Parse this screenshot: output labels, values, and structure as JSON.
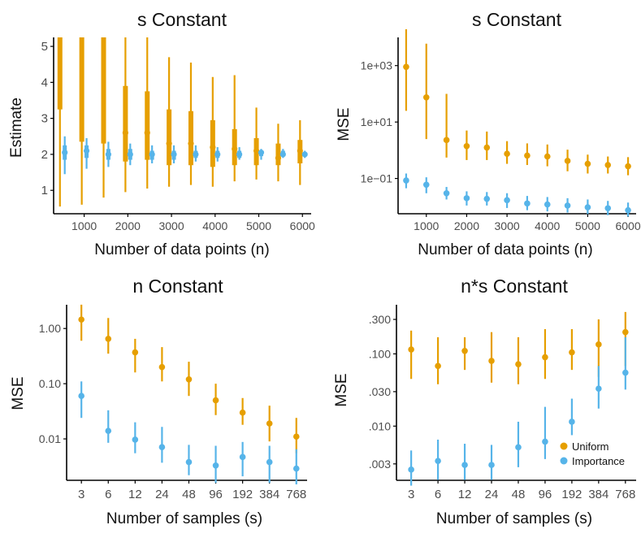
{
  "colors": {
    "uniform": "#E69F00",
    "importance": "#56B4E9",
    "axis": "#000000",
    "text": "#4d4d4d"
  },
  "legend": {
    "uniform": "Uniform",
    "importance": "Importance"
  },
  "chart_data": [
    {
      "id": "p1",
      "type": "interval",
      "title": "s Constant",
      "xlabel": "Number of data points (n)",
      "ylabel": "Estimate",
      "scale": "linear",
      "xlim": [
        300,
        6200
      ],
      "ylim": [
        0.35,
        5.25
      ],
      "xticks": [
        1000,
        2000,
        3000,
        4000,
        5000,
        6000
      ],
      "xtick_labels": [
        "1000",
        "2000",
        "3000",
        "4000",
        "5000",
        "6000"
      ],
      "yticks": [
        1,
        2,
        3,
        4,
        5
      ],
      "ytick_labels": [
        "1",
        "2",
        "3",
        "4",
        "5"
      ],
      "series": [
        {
          "name": "Uniform",
          "dx": -55,
          "x": [
            500,
            1000,
            1500,
            2000,
            2500,
            3000,
            3500,
            4000,
            4500,
            5000,
            5500,
            6000
          ],
          "y": [
            null,
            null,
            null,
            2.6,
            2.6,
            2.3,
            2.3,
            2.2,
            2.15,
            2.1,
            1.9,
            2.1
          ],
          "inner": [
            [
              3.25,
              5.3
            ],
            [
              2.35,
              5.3
            ],
            [
              2.3,
              5.3
            ],
            [
              1.8,
              3.9
            ],
            [
              1.85,
              3.75
            ],
            [
              1.7,
              3.25
            ],
            [
              1.7,
              3.2
            ],
            [
              1.65,
              2.95
            ],
            [
              1.7,
              2.7
            ],
            [
              1.7,
              2.45
            ],
            [
              1.7,
              2.3
            ],
            [
              1.75,
              2.4
            ]
          ],
          "outer": [
            [
              0.55,
              5.3
            ],
            [
              0.6,
              5.3
            ],
            [
              0.8,
              5.3
            ],
            [
              0.95,
              5.3
            ],
            [
              1.05,
              5.3
            ],
            [
              1.1,
              4.7
            ],
            [
              1.15,
              4.55
            ],
            [
              1.1,
              4.15
            ],
            [
              1.25,
              4.2
            ],
            [
              1.3,
              3.3
            ],
            [
              1.25,
              2.85
            ],
            [
              1.15,
              2.95
            ]
          ]
        },
        {
          "name": "Importance",
          "dx": 55,
          "x": [
            500,
            1000,
            1500,
            2000,
            2500,
            3000,
            3500,
            4000,
            4500,
            5000,
            5500,
            6000
          ],
          "y": [
            2.05,
            2.1,
            2.0,
            2.0,
            2.0,
            2.0,
            2.0,
            2.0,
            2.0,
            2.05,
            2.0,
            2.0
          ],
          "inner": [
            [
              1.85,
              2.25
            ],
            [
              1.9,
              2.25
            ],
            [
              1.85,
              2.15
            ],
            [
              1.85,
              2.15
            ],
            [
              1.85,
              2.1
            ],
            [
              1.85,
              2.1
            ],
            [
              1.9,
              2.1
            ],
            [
              1.9,
              2.1
            ],
            [
              1.9,
              2.1
            ],
            [
              1.95,
              2.1
            ],
            [
              1.95,
              2.1
            ],
            [
              1.95,
              2.05
            ]
          ],
          "outer": [
            [
              1.45,
              2.5
            ],
            [
              1.6,
              2.45
            ],
            [
              1.65,
              2.35
            ],
            [
              1.7,
              2.3
            ],
            [
              1.75,
              2.25
            ],
            [
              1.75,
              2.25
            ],
            [
              1.8,
              2.25
            ],
            [
              1.8,
              2.2
            ],
            [
              1.85,
              2.2
            ],
            [
              1.85,
              2.15
            ],
            [
              1.9,
              2.15
            ],
            [
              1.9,
              2.1
            ]
          ]
        }
      ]
    },
    {
      "id": "p2",
      "type": "scatter_errorbar",
      "title": "s Constant",
      "xlabel": "Number of data points (n)",
      "ylabel": "MSE",
      "scale": "log",
      "xlim": [
        300,
        6200
      ],
      "ylim_log10": [
        -2.25,
        4.0
      ],
      "xticks": [
        1000,
        2000,
        3000,
        4000,
        5000,
        6000
      ],
      "xtick_labels": [
        "1000",
        "2000",
        "3000",
        "4000",
        "5000",
        "6000"
      ],
      "yticks": [
        1000,
        10,
        0.1
      ],
      "ytick_labels": [
        "1e+03",
        "1e+01",
        "1e−01"
      ],
      "series": [
        {
          "name": "Uniform",
          "x": [
            500,
            1000,
            1500,
            2000,
            2500,
            3000,
            3500,
            4000,
            4500,
            5000,
            5500,
            6000
          ],
          "y": [
            900,
            75,
            2.3,
            1.4,
            1.25,
            0.75,
            0.65,
            0.6,
            0.42,
            0.33,
            0.3,
            0.27
          ],
          "err": [
            [
              25,
              30000
            ],
            [
              2.5,
              6000
            ],
            [
              0.55,
              100
            ],
            [
              0.45,
              5
            ],
            [
              0.45,
              4.6
            ],
            [
              0.33,
              2.1
            ],
            [
              0.3,
              1.75
            ],
            [
              0.27,
              1.6
            ],
            [
              0.18,
              1.05
            ],
            [
              0.15,
              0.7
            ],
            [
              0.15,
              0.6
            ],
            [
              0.13,
              0.57
            ]
          ]
        },
        {
          "name": "Importance",
          "x": [
            500,
            1000,
            1500,
            2000,
            2500,
            3000,
            3500,
            4000,
            4500,
            5000,
            5500,
            6000
          ],
          "y": [
            0.085,
            0.06,
            0.03,
            0.02,
            0.019,
            0.017,
            0.013,
            0.012,
            0.011,
            0.0095,
            0.0088,
            0.0075
          ],
          "err": [
            [
              0.045,
              0.15
            ],
            [
              0.03,
              0.11
            ],
            [
              0.018,
              0.05
            ],
            [
              0.011,
              0.035
            ],
            [
              0.011,
              0.033
            ],
            [
              0.009,
              0.03
            ],
            [
              0.0075,
              0.024
            ],
            [
              0.0068,
              0.022
            ],
            [
              0.0062,
              0.02
            ],
            [
              0.0055,
              0.018
            ],
            [
              0.005,
              0.016
            ],
            [
              0.0045,
              0.014
            ]
          ]
        }
      ]
    },
    {
      "id": "p3",
      "type": "scatter_errorbar",
      "title": "n Constant",
      "xlabel": "Number of samples (s)",
      "ylabel": "MSE",
      "scale": "log",
      "xlim_index": [
        -0.55,
        8.4
      ],
      "ylim_log10": [
        -2.75,
        0.43
      ],
      "categories": [
        "3",
        "6",
        "12",
        "24",
        "48",
        "96",
        "192",
        "384",
        "768"
      ],
      "yticks": [
        1.0,
        0.1,
        0.01
      ],
      "ytick_labels": [
        "1.00",
        "0.10",
        "0.01"
      ],
      "series": [
        {
          "name": "Uniform",
          "y": [
            1.45,
            0.65,
            0.37,
            0.2,
            0.12,
            0.05,
            0.03,
            0.019,
            0.011
          ],
          "err": [
            [
              0.6,
              2.7
            ],
            [
              0.35,
              1.55
            ],
            [
              0.16,
              0.65
            ],
            [
              0.11,
              0.46
            ],
            [
              0.06,
              0.25
            ],
            [
              0.027,
              0.1
            ],
            [
              0.018,
              0.055
            ],
            [
              0.009,
              0.04
            ],
            [
              0.0055,
              0.024
            ]
          ]
        },
        {
          "name": "Importance",
          "y": [
            0.06,
            0.014,
            0.0097,
            0.0071,
            0.0038,
            0.0033,
            0.0047,
            0.0038,
            0.0029
          ],
          "err": [
            [
              0.024,
              0.11
            ],
            [
              0.0085,
              0.033
            ],
            [
              0.0055,
              0.02
            ],
            [
              0.0037,
              0.0165
            ],
            [
              0.0022,
              0.0078
            ],
            [
              0.0016,
              0.0075
            ],
            [
              0.0021,
              0.0088
            ],
            [
              0.0016,
              0.0075
            ],
            [
              0.0015,
              0.0065
            ]
          ]
        }
      ]
    },
    {
      "id": "p4",
      "type": "scatter_errorbar",
      "title": "n*s Constant",
      "xlabel": "Number of samples (s)",
      "ylabel": "MSE",
      "scale": "log",
      "xlim_index": [
        -0.55,
        8.4
      ],
      "ylim_log10": [
        -2.75,
        -0.32
      ],
      "categories": [
        "3",
        "6",
        "12",
        "24",
        "48",
        "96",
        "192",
        "384",
        "768"
      ],
      "yticks": [
        0.3,
        0.1,
        0.03,
        0.01,
        0.003
      ],
      "ytick_labels": [
        ".300",
        ".100",
        ".030",
        ".010",
        ".003"
      ],
      "series": [
        {
          "name": "Uniform",
          "y": [
            0.115,
            0.068,
            0.11,
            0.08,
            0.072,
            0.09,
            0.105,
            0.135,
            0.2
          ],
          "err": [
            [
              0.045,
              0.21
            ],
            [
              0.038,
              0.17
            ],
            [
              0.06,
              0.17
            ],
            [
              0.04,
              0.2
            ],
            [
              0.038,
              0.17
            ],
            [
              0.045,
              0.22
            ],
            [
              0.06,
              0.22
            ],
            [
              0.048,
              0.3
            ],
            [
              0.068,
              0.38
            ]
          ]
        },
        {
          "name": "Importance",
          "y": [
            0.0025,
            0.0033,
            0.0029,
            0.0029,
            0.0051,
            0.0061,
            0.0115,
            0.033,
            0.055
          ],
          "err": [
            [
              0.0015,
              0.0046
            ],
            [
              0.0018,
              0.0065
            ],
            [
              0.0018,
              0.0057
            ],
            [
              0.0018,
              0.0055
            ],
            [
              0.0027,
              0.0115
            ],
            [
              0.0035,
              0.0185
            ],
            [
              0.0075,
              0.024
            ],
            [
              0.0175,
              0.068
            ],
            [
              0.032,
              0.17
            ]
          ]
        }
      ]
    }
  ]
}
